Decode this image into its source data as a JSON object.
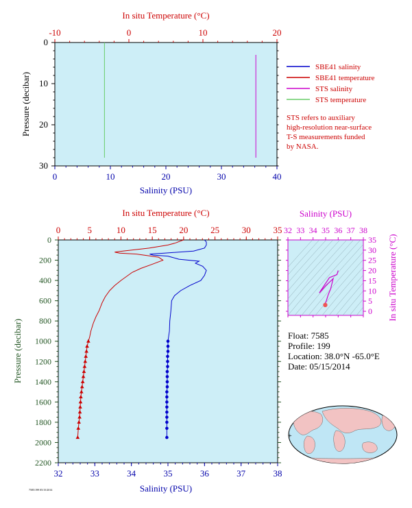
{
  "chart_data": [
    {
      "type": "line",
      "panel": "surface",
      "title_top": "In situ Temperature (°C)",
      "xlabel_bottom": "Salinity (PSU)",
      "ylabel": "Pressure (decibar)",
      "top_axis_range": [
        -10,
        20
      ],
      "top_ticks": [
        "-10",
        "0",
        "10",
        "20"
      ],
      "bottom_axis_range": [
        0,
        40
      ],
      "bottom_ticks": [
        "0",
        "10",
        "20",
        "30",
        "40"
      ],
      "y_range": [
        0,
        30
      ],
      "y_ticks": [
        "0",
        "10",
        "20",
        "30"
      ],
      "series": [
        {
          "name": "STS salinity",
          "axis": "salinity",
          "color": "#cc00cc",
          "x": [
            36.2,
            36.2
          ],
          "y": [
            3,
            28
          ]
        },
        {
          "name": "STS temperature",
          "axis": "temperature",
          "color": "#66cc66",
          "x": [
            -3.3,
            -3.3
          ],
          "y": [
            0,
            28
          ]
        },
        {
          "name": "SBE41 salinity",
          "axis": "salinity",
          "color": "#0000cc",
          "x": [],
          "y": []
        },
        {
          "name": "SBE41 temperature",
          "axis": "temperature",
          "color": "#cc0000",
          "x": [],
          "y": []
        }
      ],
      "legend": [
        "SBE41 salinity",
        "SBE41 temperature",
        "STS salinity",
        "STS temperature"
      ],
      "note": [
        "STS refers to auxiliary",
        "high-resolution near-surface",
        "T-S measurements funded",
        "by NASA."
      ]
    },
    {
      "type": "line",
      "panel": "profile",
      "title_top": "In situ Temperature (°C)",
      "xlabel_bottom": "Salinity (PSU)",
      "ylabel": "Pressure (decibar)",
      "top_axis_range": [
        0,
        35
      ],
      "top_ticks": [
        "0",
        "5",
        "10",
        "15",
        "20",
        "25",
        "30",
        "35"
      ],
      "bottom_axis_range": [
        32,
        38
      ],
      "bottom_ticks": [
        "32",
        "33",
        "34",
        "35",
        "36",
        "37",
        "38"
      ],
      "y_range": [
        0,
        2200
      ],
      "y_ticks": [
        "0",
        "200",
        "400",
        "600",
        "800",
        "1000",
        "1200",
        "1400",
        "1600",
        "1800",
        "2000",
        "2200"
      ],
      "series": [
        {
          "name": "SBE41 temperature",
          "color": "#cc0000",
          "temperature": [
            20.0,
            19.5,
            18.7,
            17.5,
            14.5,
            10.3,
            9.0,
            9.8,
            12.5,
            16.0,
            16.7,
            15.0,
            13.2,
            11.8,
            10.0,
            9.0,
            8.2,
            7.5,
            7.0,
            6.5,
            6.0,
            5.6,
            5.2,
            5.0,
            4.8
          ],
          "pressure": [
            0,
            10,
            30,
            50,
            80,
            110,
            120,
            130,
            140,
            170,
            200,
            240,
            280,
            320,
            400,
            450,
            500,
            560,
            620,
            700,
            760,
            820,
            900,
            960,
            1000
          ]
        },
        {
          "name": "SBE41 salinity",
          "color": "#0000cc",
          "salinity": [
            36.0,
            36.05,
            36.05,
            36.0,
            35.7,
            34.9,
            34.5,
            34.6,
            35.0,
            35.1,
            35.3,
            35.85,
            35.75,
            35.95,
            36.05,
            36.0,
            35.9,
            35.6,
            35.35,
            35.18,
            35.1,
            35.08,
            35.05,
            35.04,
            35.02,
            35.0
          ],
          "pressure": [
            0,
            20,
            50,
            80,
            110,
            130,
            140,
            150,
            160,
            170,
            190,
            210,
            230,
            260,
            300,
            350,
            400,
            450,
            500,
            550,
            600,
            700,
            800,
            900,
            950,
            1000
          ]
        },
        {
          "name": "SBE41 temperature (bottle points)",
          "color": "#cc0000",
          "temperature": [
            4.8,
            4.6,
            4.5,
            4.4,
            4.3,
            4.2,
            4.1,
            4.0,
            3.9,
            3.8,
            3.7,
            3.6,
            3.55,
            3.5,
            3.45,
            3.4,
            3.3,
            3.2,
            3.1
          ],
          "pressure": [
            1000,
            1050,
            1100,
            1150,
            1200,
            1250,
            1300,
            1350,
            1400,
            1450,
            1500,
            1550,
            1600,
            1650,
            1700,
            1750,
            1800,
            1860,
            1950
          ]
        },
        {
          "name": "SBE41 salinity (bottle points)",
          "color": "#0000cc",
          "salinity": [
            35.0,
            35.0,
            35.0,
            34.99,
            34.99,
            34.99,
            34.98,
            34.98,
            34.98,
            34.98,
            34.97,
            34.97,
            34.97,
            34.97,
            34.97,
            34.97,
            34.97,
            34.97,
            34.97
          ],
          "pressure": [
            1000,
            1050,
            1100,
            1150,
            1200,
            1250,
            1300,
            1350,
            1400,
            1450,
            1500,
            1550,
            1600,
            1650,
            1700,
            1750,
            1800,
            1860,
            1950
          ]
        }
      ]
    },
    {
      "type": "scatter",
      "panel": "ts-diagram",
      "title_top": "Salinity (PSU)",
      "ylabel_right": "In situ Temperature (°C)",
      "x_range": [
        32,
        38
      ],
      "x_ticks": [
        "32",
        "33",
        "34",
        "35",
        "36",
        "37",
        "38"
      ],
      "y_range": [
        -2,
        35
      ],
      "y_ticks": [
        "0",
        "5",
        "10",
        "15",
        "20",
        "25",
        "30",
        "35"
      ],
      "series": [
        {
          "name": "T-S curve",
          "color": "#cc00cc",
          "salinity": [
            36.0,
            35.9,
            35.3,
            34.6,
            34.5,
            35.0,
            35.6,
            35.4,
            35.2,
            35.1,
            35.05,
            35.0,
            34.98,
            34.97
          ],
          "temperature": [
            20.0,
            18.0,
            16.5,
            10.0,
            9.0,
            12.5,
            16.0,
            11.0,
            8.0,
            6.0,
            5.0,
            4.5,
            4.0,
            3.1
          ]
        }
      ]
    }
  ],
  "info": {
    "float": "Float:  7585",
    "profile": "Profile:  199",
    "location": "Location:  38.0°N  -65.0°E",
    "date": "Date:  05/15/2014"
  },
  "footer_tag": "7585/199 05/15/2014",
  "colors": {
    "panel_bg": "#cdeef7",
    "temperature_axis": "#cc0000",
    "salinity_axis": "#0000aa",
    "ts_axis": "#cc00cc",
    "pressure_axis": "#225522"
  }
}
